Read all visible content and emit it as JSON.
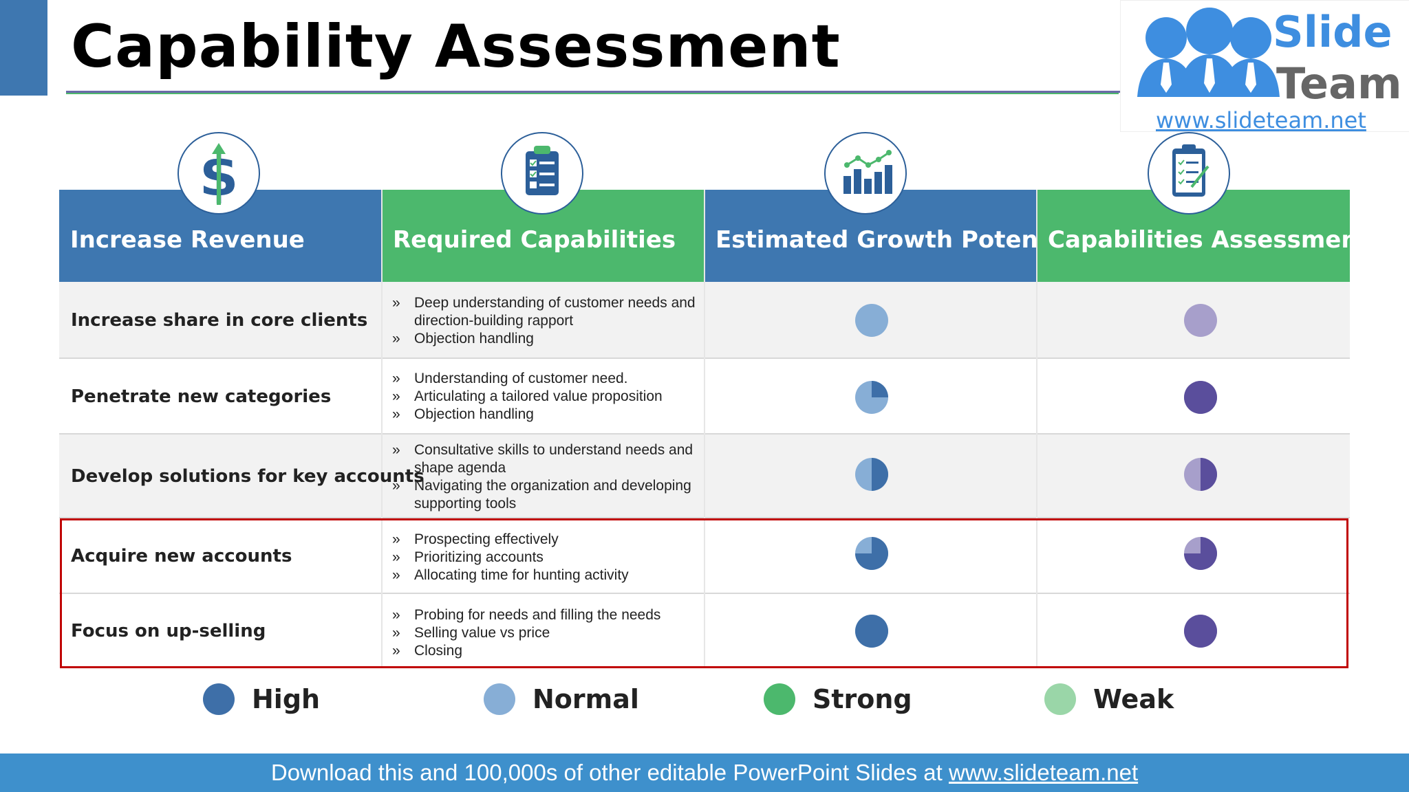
{
  "slide": {
    "title": "Capability Assessment"
  },
  "logo": {
    "line1": "Slide",
    "line2": "Team",
    "url": "www.slideteam.net"
  },
  "table": {
    "headers": [
      {
        "label": "Increase Revenue",
        "icon": "dollar-icon",
        "color": "#3e77b0"
      },
      {
        "label": "Required Capabilities",
        "icon": "clipboard-list-icon",
        "color": "#4cb86d"
      },
      {
        "label": "Estimated Growth Potential",
        "icon": "bar-chart-icon",
        "color": "#3e77b0"
      },
      {
        "label": "Capabilities Assessment",
        "icon": "checklist-icon",
        "color": "#4cb86d"
      }
    ],
    "rows": [
      {
        "goal": "Increase share in core clients",
        "capabilities": [
          "Deep understanding of customer needs and direction-building rapport",
          "Objection handling"
        ],
        "growth_fill": 0,
        "assessment_fill": 0
      },
      {
        "goal": "Penetrate new categories",
        "capabilities": [
          "Understanding of customer need.",
          "Articulating a tailored value proposition",
          "Objection handling"
        ],
        "growth_fill": 0.25,
        "assessment_fill": 1
      },
      {
        "goal": "Develop solutions for key accounts",
        "capabilities": [
          "Consultative skills to understand needs and shape agenda",
          "Navigating the organization and developing supporting tools"
        ],
        "growth_fill": 0.5,
        "assessment_fill": 0.5
      },
      {
        "goal": "Acquire new accounts",
        "capabilities": [
          "Prospecting effectively",
          "Prioritizing accounts",
          "Allocating time for hunting activity"
        ],
        "growth_fill": 0.75,
        "assessment_fill": 0.75
      },
      {
        "goal": "Focus on up-selling",
        "capabilities": [
          "Probing for needs and filling the needs",
          "Selling value vs price",
          "Closing"
        ],
        "growth_fill": 1,
        "assessment_fill": 1
      }
    ],
    "bullet_marker": "»",
    "growth_colors": {
      "filled": "#3e6fa8",
      "empty": "#87aed6"
    },
    "assessment_colors": {
      "filled": "#5a4e9c",
      "empty": "#a79fcb"
    }
  },
  "legend": [
    {
      "label": "High",
      "color": "#3e6fa8"
    },
    {
      "label": "Normal",
      "color": "#87aed6"
    },
    {
      "label": "Strong",
      "color": "#4cb86d"
    },
    {
      "label": "Weak",
      "color": "#9ad6a8"
    }
  ],
  "footer": {
    "text": "Download this and 100,000s of other editable PowerPoint Slides at ",
    "link": "www.slideteam.net"
  }
}
